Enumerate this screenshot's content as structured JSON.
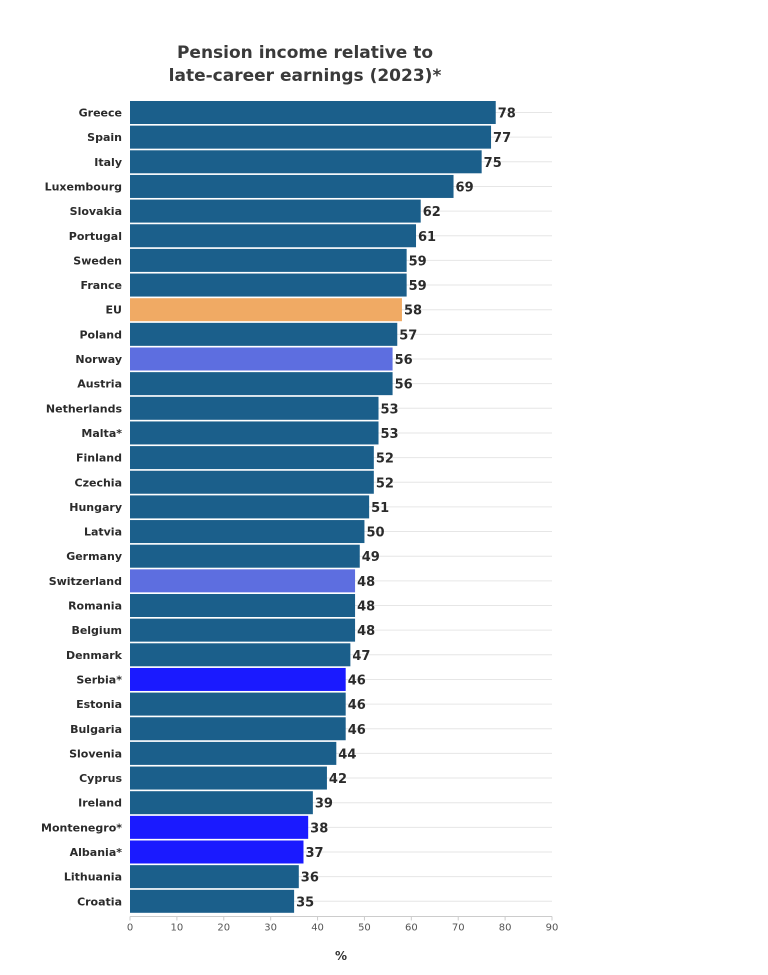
{
  "chart_data": {
    "type": "bar",
    "orientation": "horizontal",
    "title_lines": [
      "Pension income relative to",
      "late-career earnings (2023)*"
    ],
    "xlabel": "%",
    "ylabel": "",
    "xlim": [
      0,
      90
    ],
    "xticks": [
      0,
      10,
      20,
      30,
      40,
      50,
      60,
      70,
      80,
      90
    ],
    "grid": true,
    "categories": [
      "Greece",
      "Spain",
      "Italy",
      "Luxembourg",
      "Slovakia",
      "Portugal",
      "Sweden",
      "France",
      "EU",
      "Poland",
      "Norway",
      "Austria",
      "Netherlands",
      "Malta*",
      "Finland",
      "Czechia",
      "Hungary",
      "Latvia",
      "Germany",
      "Switzerland",
      "Romania",
      "Belgium",
      "Denmark",
      "Serbia*",
      "Estonia",
      "Bulgaria",
      "Slovenia",
      "Cyprus",
      "Ireland",
      "Montenegro*",
      "Albania*",
      "Lithuania",
      "Croatia"
    ],
    "values": [
      78,
      77,
      75,
      69,
      62,
      61,
      59,
      59,
      58,
      57,
      56,
      56,
      53,
      53,
      52,
      52,
      51,
      50,
      49,
      48,
      48,
      48,
      47,
      46,
      46,
      46,
      44,
      42,
      39,
      38,
      37,
      36,
      35
    ],
    "bar_colors": [
      "#1b5f8b",
      "#1b5f8b",
      "#1b5f8b",
      "#1b5f8b",
      "#1b5f8b",
      "#1b5f8b",
      "#1b5f8b",
      "#1b5f8b",
      "#f0aa64",
      "#1b5f8b",
      "#5d6ee0",
      "#1b5f8b",
      "#1b5f8b",
      "#1b5f8b",
      "#1b5f8b",
      "#1b5f8b",
      "#1b5f8b",
      "#1b5f8b",
      "#1b5f8b",
      "#5d6ee0",
      "#1b5f8b",
      "#1b5f8b",
      "#1b5f8b",
      "#1a1aff",
      "#1b5f8b",
      "#1b5f8b",
      "#1b5f8b",
      "#1b5f8b",
      "#1b5f8b",
      "#1a1aff",
      "#1a1aff",
      "#1b5f8b",
      "#1b5f8b"
    ]
  }
}
